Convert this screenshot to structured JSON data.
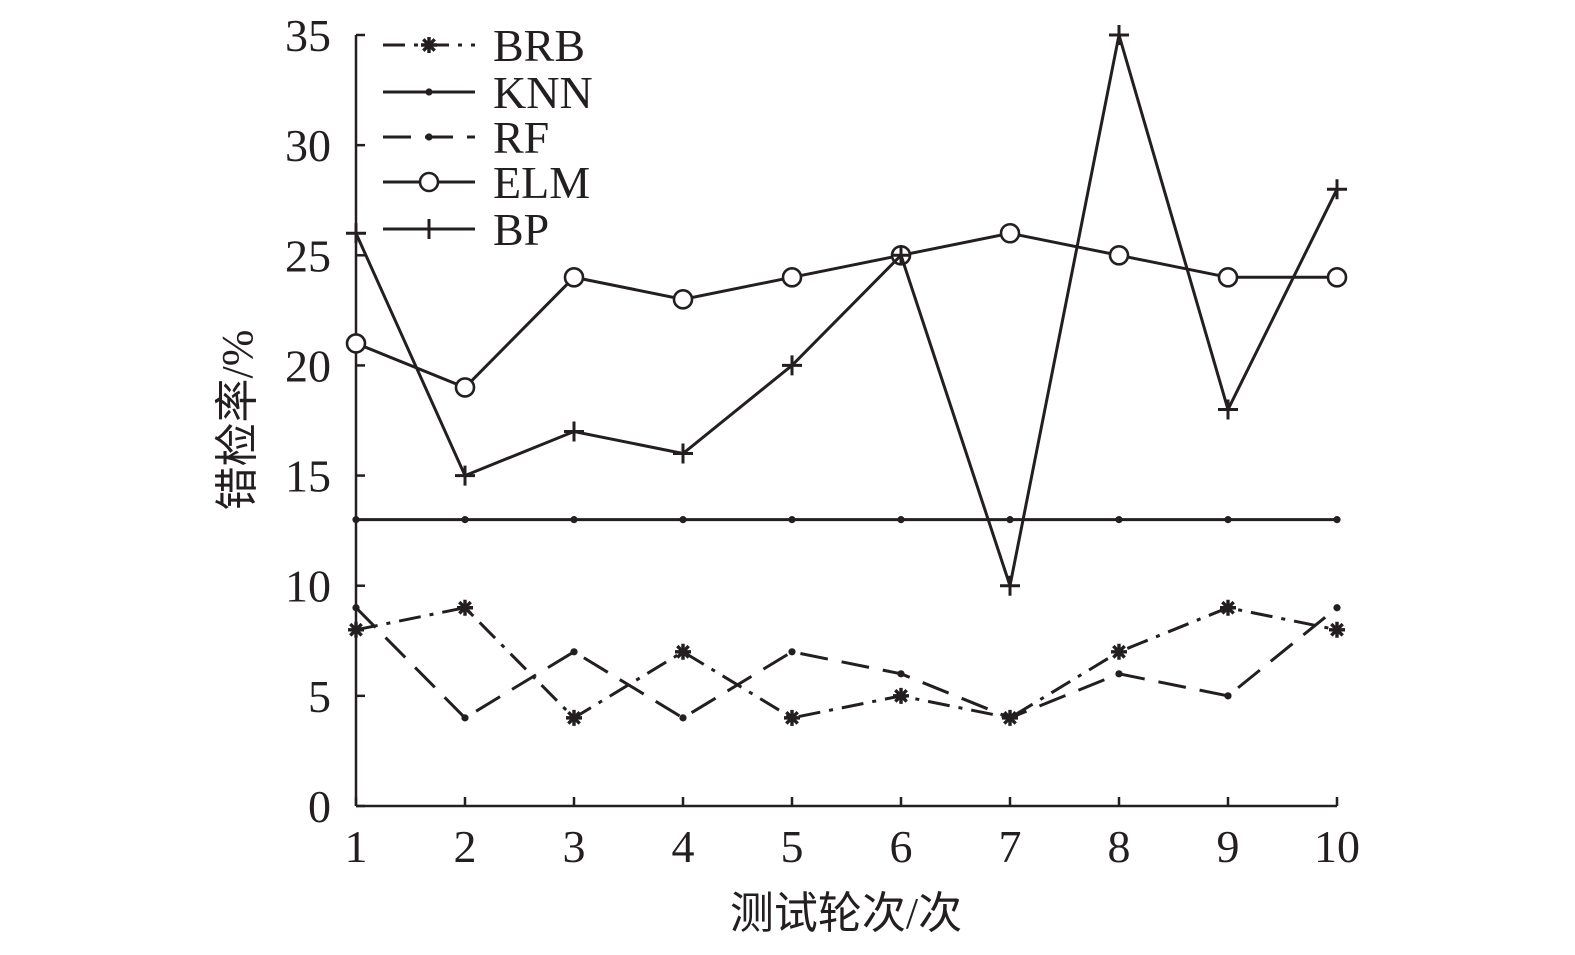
{
  "chart_data": {
    "type": "line",
    "title": "",
    "xlabel": "测试轮次/次",
    "ylabel": "错检率/%",
    "x": [
      1,
      2,
      3,
      4,
      5,
      6,
      7,
      8,
      9,
      10
    ],
    "xlim": [
      1,
      10
    ],
    "ylim": [
      0,
      35
    ],
    "xticks": [
      "1",
      "2",
      "3",
      "4",
      "5",
      "6",
      "7",
      "8",
      "9",
      "10"
    ],
    "yticks": [
      "0",
      "5",
      "10",
      "15",
      "20",
      "25",
      "30",
      "35"
    ],
    "ytick_values": [
      0,
      5,
      10,
      15,
      20,
      25,
      30,
      35
    ],
    "grid": false,
    "legend_position": "top-left",
    "series": [
      {
        "name": "BRB",
        "values": [
          8,
          9,
          4,
          7,
          4,
          5,
          4,
          7,
          9,
          8
        ],
        "line_style": "dash-dot",
        "marker": "asterisk"
      },
      {
        "name": "KNN",
        "values": [
          13,
          13,
          13,
          13,
          13,
          13,
          13,
          13,
          13,
          13
        ],
        "line_style": "solid",
        "marker": "dot"
      },
      {
        "name": "RF",
        "values": [
          9,
          4,
          7,
          4,
          7,
          6,
          4,
          6,
          5,
          9
        ],
        "line_style": "dashed",
        "marker": "dot"
      },
      {
        "name": "ELM",
        "values": [
          21,
          19,
          24,
          23,
          24,
          25,
          26,
          25,
          24,
          24
        ],
        "line_style": "solid",
        "marker": "circle"
      },
      {
        "name": "BP",
        "values": [
          26,
          15,
          17,
          16,
          20,
          25,
          10,
          35,
          18,
          28
        ],
        "line_style": "solid",
        "marker": "plus"
      }
    ],
    "colors": {
      "ink": "#231f20"
    }
  }
}
